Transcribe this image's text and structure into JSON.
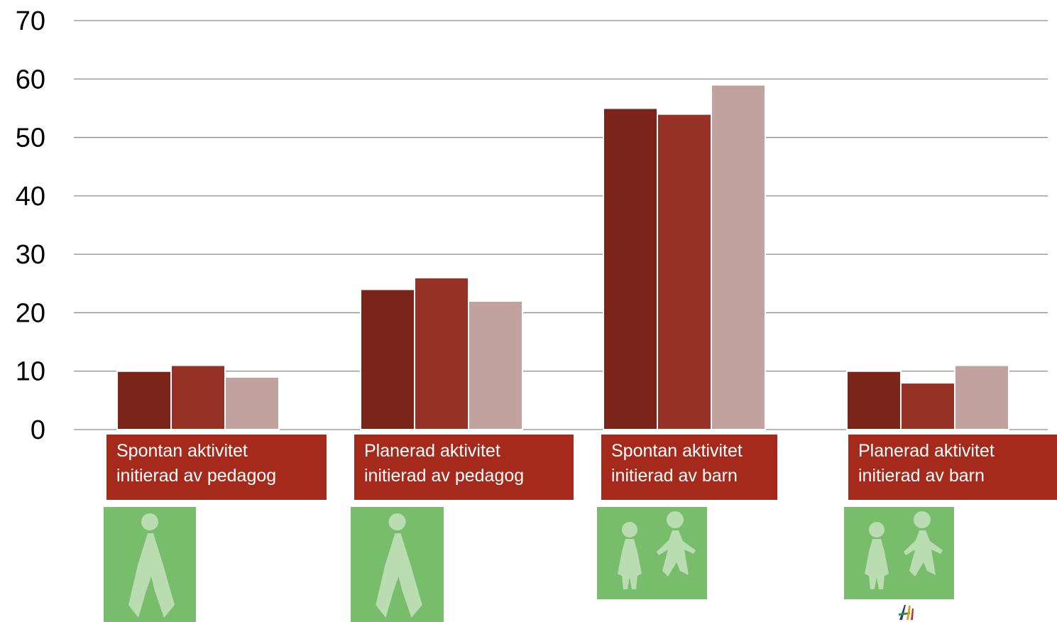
{
  "chart_data": {
    "type": "bar",
    "categories": [
      "Spontan aktivitet\ninitierad av pedagog",
      "Planerad aktivitet\ninitierad av pedagog",
      "Spontan aktivitet\ninitierad av barn",
      "Planerad aktivitet\ninitierad av barn"
    ],
    "series": [
      {
        "values": [
          10,
          24,
          55,
          10
        ],
        "color": "#7b241a"
      },
      {
        "values": [
          11,
          26,
          54,
          8
        ],
        "color": "#963125"
      },
      {
        "values": [
          9,
          22,
          59,
          11
        ],
        "color": "#c2a29f"
      }
    ],
    "ylim": [
      0,
      70
    ],
    "yticks": [
      0,
      10,
      20,
      30,
      40,
      50,
      60,
      70
    ],
    "grid": true,
    "title": "",
    "xlabel": "",
    "ylabel": ""
  },
  "category_icons": [
    "adult-figure-icon",
    "adult-figure-icon",
    "two-children-icon",
    "two-children-icon"
  ],
  "colors": {
    "label_background": "#a52a1b",
    "icon_tile": "#77bd6b",
    "icon_figure": "#b9dcb1",
    "gridline": "#8c8c8c"
  }
}
